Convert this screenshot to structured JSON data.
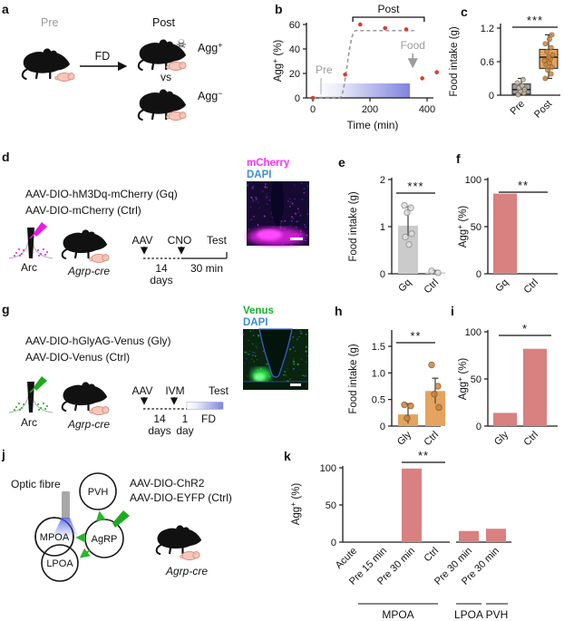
{
  "labels": {
    "agg": "Agg",
    "plus": "+",
    "minus": "−",
    "pct": " (%)"
  },
  "colors": {
    "salmon_bar": "#d98080",
    "orange_bar": "#e5a35f",
    "orange_dot": "#cd853f",
    "gray_bar": "#cbcbcb",
    "gray_box": "#9b9b9b",
    "red_point": "#e0392d",
    "trend_gray": "#999999",
    "fast_gradient_end": "#7f84de",
    "mcherry_magenta": "#ff2dff",
    "dapi_blue": "#3e8ed0",
    "venus_green": "#17b02c",
    "arrow_green": "#2db32d",
    "annotation_gray": "#9b9b9b"
  },
  "panels": {
    "a": {
      "letter": "a",
      "pre": "Pre",
      "fd": "FD",
      "post": "Post",
      "vs": "vs",
      "skull": "☠"
    },
    "b": {
      "letter": "b"
    },
    "c": {
      "letter": "c"
    },
    "d": {
      "letter": "d",
      "line1": "AAV-DIO-hM3Dq-mCherry (Gq)",
      "line2": "AAV-DIO-mCherry (Ctrl)",
      "arc": "Arc",
      "cre": "Agrp-cre",
      "t1": "AAV",
      "t2": "CNO",
      "t3": "Test",
      "d14": "14",
      "days": "days",
      "dur": "30 min",
      "img1": "mCherry",
      "img2": "DAPI"
    },
    "e": {
      "letter": "e"
    },
    "f": {
      "letter": "f"
    },
    "g": {
      "letter": "g",
      "line1": "AAV-DIO-hGlyAG-Venus (Gly)",
      "line2": "AAV-DIO-Venus (Ctrl)",
      "arc": "Arc",
      "cre": "Agrp-cre",
      "t1": "AAV",
      "t2": "IVM",
      "t3": "Test",
      "d14": "14",
      "days": "days",
      "d1": "1",
      "day": "day",
      "fd": "FD",
      "img1": "Venus",
      "img2": "DAPI"
    },
    "h": {
      "letter": "h"
    },
    "i": {
      "letter": "i"
    },
    "j": {
      "letter": "j",
      "optic": "Optic fibre",
      "pvh": "PVH",
      "mpoa": "MPOA",
      "agrp": "AgRP",
      "lpoa": "LPOA",
      "line1": "AAV-DIO-ChR2",
      "line2": "AAV-DIO-EYFP (Ctrl)",
      "cre": "Agrp-cre"
    },
    "k": {
      "letter": "k"
    }
  },
  "chart_data": [
    {
      "id": "b",
      "type": "scatter",
      "ylabel": "Agg+ (%)",
      "xlabel": "Time (min)",
      "ylim": [
        0,
        60
      ],
      "xlim": [
        0,
        440
      ],
      "ytick_vals": [
        0,
        20,
        40,
        60
      ],
      "ytick_labels": [
        "0",
        "20",
        "40",
        "60"
      ],
      "xtick_vals": [
        0,
        200,
        400
      ],
      "xtick_labels": [
        "0",
        "200",
        "400"
      ],
      "points": [
        [
          0,
          0
        ],
        [
          113,
          19
        ],
        [
          166,
          60
        ],
        [
          253,
          57
        ],
        [
          327,
          56
        ],
        [
          383,
          16
        ],
        [
          434,
          21
        ]
      ],
      "trend": {
        "style": "dashed-sigmoid",
        "flat_until": 95,
        "rise_end": 150,
        "plateau": 55,
        "end": 355
      },
      "fasting_bar": {
        "x0": 0,
        "x1": 340
      },
      "annotations": {
        "pre": "Pre",
        "post": "Post",
        "post_span": [
          140,
          390
        ],
        "food": "Food",
        "food_x": 350
      }
    },
    {
      "id": "c",
      "type": "box",
      "ylabel": "Food intake (g)",
      "ytick_vals": [
        0,
        0.6,
        1.2
      ],
      "ytick_labels": [
        "0",
        "0.6",
        "1.2"
      ],
      "ylim": [
        0,
        1.3
      ],
      "significance": "***",
      "boxes": [
        {
          "label": "Pre",
          "whisker_low": 0,
          "q1": 0.02,
          "median": 0.1,
          "q3": 0.2,
          "whisker_high": 0.3,
          "points": [
            0.01,
            0.04,
            0.07,
            0.1,
            0.13,
            0.17,
            0.22,
            0.28
          ]
        },
        {
          "label": "Post",
          "whisker_low": 0.3,
          "q1": 0.48,
          "median": 0.68,
          "q3": 0.82,
          "whisker_high": 1.08,
          "points": [
            0.3,
            0.38,
            0.45,
            0.5,
            0.55,
            0.58,
            0.62,
            0.65,
            0.68,
            0.72,
            0.78,
            0.85,
            0.92,
            1.0,
            1.08
          ]
        }
      ]
    },
    {
      "id": "e",
      "type": "bar",
      "ylabel": "Food intake (g)",
      "ytick_vals": [
        0,
        1,
        2
      ],
      "ytick_labels": [
        "0",
        "1",
        "2"
      ],
      "ylim": [
        0,
        2.1
      ],
      "significance": "***",
      "bars": [
        {
          "label": "Gq",
          "value": 1.02,
          "err_low": 0.8,
          "err_high": 1.42,
          "points": [
            1.45,
            1.4,
            1.3,
            0.85,
            0.78,
            0.62
          ]
        },
        {
          "label": "Ctrl",
          "value": 0.03,
          "err_low": 0,
          "err_high": 0.07,
          "points": [
            0.06,
            0.02
          ]
        }
      ]
    },
    {
      "id": "f",
      "type": "bar",
      "ylabel": "Agg+ (%)",
      "ytick_vals": [
        0,
        50,
        100
      ],
      "ytick_labels": [
        "0",
        "50",
        "100"
      ],
      "ylim": [
        0,
        105
      ],
      "significance": "**",
      "bars": [
        {
          "label": "Gq",
          "value": 85
        },
        {
          "label": "Ctrl",
          "value": 0
        }
      ]
    },
    {
      "id": "h",
      "type": "bar",
      "ylabel": "Food intake (g)",
      "ytick_vals": [
        0,
        0.5,
        1.0,
        1.5
      ],
      "ytick_labels": [
        "0",
        "0.5",
        "1.0",
        "1.5"
      ],
      "ylim": [
        0,
        1.55
      ],
      "significance": "**",
      "bars": [
        {
          "label": "Gly",
          "value": 0.22,
          "err_low": 0.05,
          "err_high": 0.42,
          "points": [
            0.4,
            0.38,
            0.15
          ]
        },
        {
          "label": "Ctrl",
          "value": 0.66,
          "err_low": 0.42,
          "err_high": 0.9,
          "points": [
            1.15,
            0.75,
            0.6,
            0.35
          ]
        }
      ]
    },
    {
      "id": "i",
      "type": "bar",
      "ylabel": "Agg+ (%)",
      "ytick_vals": [
        0,
        50,
        100
      ],
      "ytick_labels": [
        "0",
        "50",
        "100"
      ],
      "ylim": [
        0,
        105
      ],
      "significance": "*",
      "bars": [
        {
          "label": "Gly",
          "value": 14
        },
        {
          "label": "Ctrl",
          "value": 82
        }
      ]
    },
    {
      "id": "k",
      "type": "bar",
      "ylabel": "Agg+ (%)",
      "ytick_vals": [
        0,
        50,
        100
      ],
      "ytick_labels": [
        "0",
        "50",
        "100"
      ],
      "ylim": [
        0,
        105
      ],
      "significance": "**",
      "sig_between": [
        "Pre 30 min",
        "Ctrl"
      ],
      "bars": [
        {
          "label": "Acute",
          "value": 0
        },
        {
          "label": "Pre 15 min",
          "value": 0
        },
        {
          "label": "Pre 30 min",
          "value": 99
        },
        {
          "label": "Ctrl",
          "value": 0
        },
        {
          "label": "Pre 30 min",
          "value": 15
        },
        {
          "label": "Pre 30 min",
          "value": 18
        }
      ],
      "groups": [
        {
          "label": "MPOA",
          "from": 0,
          "to": 3
        },
        {
          "label": "LPOA",
          "from": 4,
          "to": 4
        },
        {
          "label": "PVH",
          "from": 5,
          "to": 5
        }
      ]
    }
  ]
}
